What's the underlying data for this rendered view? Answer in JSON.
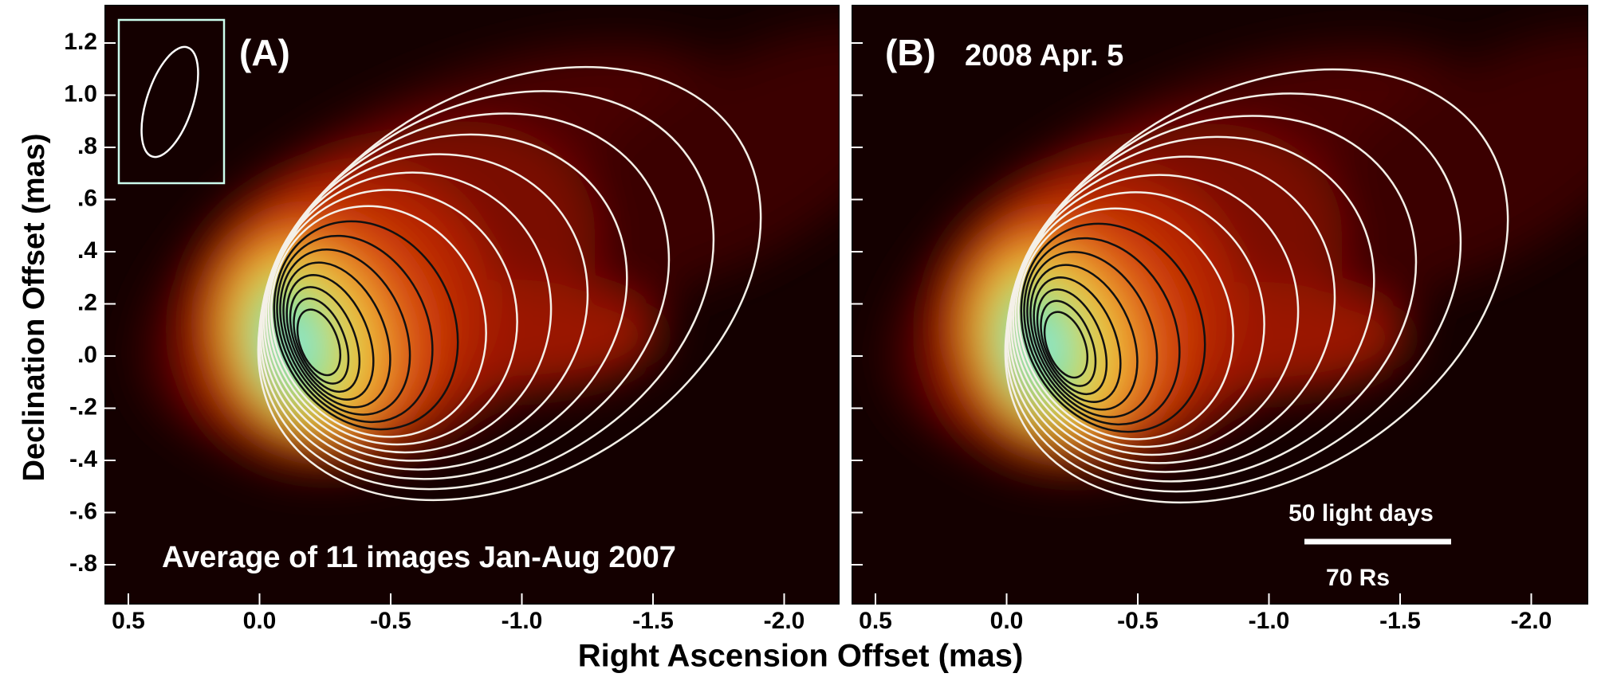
{
  "figure": {
    "y_axis_title": "Declination Offset (mas)",
    "x_axis_title": "Right Ascension Offset (mas)",
    "y_ticks": [
      "1.2",
      "1.0",
      ".8",
      ".6",
      ".4",
      ".2",
      ".0",
      "-.2",
      "-.4",
      "-.6",
      "-.8"
    ],
    "panels": [
      {
        "label": "(A)",
        "caption": "Average of 11 images  Jan-Aug 2007",
        "x_ticks": [
          "0.5",
          "0.0",
          "-0.5",
          "-1.0",
          "-1.5",
          "-2.0"
        ]
      },
      {
        "label": "(B)",
        "date": "2008 Apr. 5",
        "scale_top": "50 light days",
        "scale_bottom": "70 Rs",
        "x_ticks": [
          "0.5",
          "0.0",
          "-0.5",
          "-1.0",
          "-1.5",
          "-2.0"
        ]
      }
    ]
  }
}
